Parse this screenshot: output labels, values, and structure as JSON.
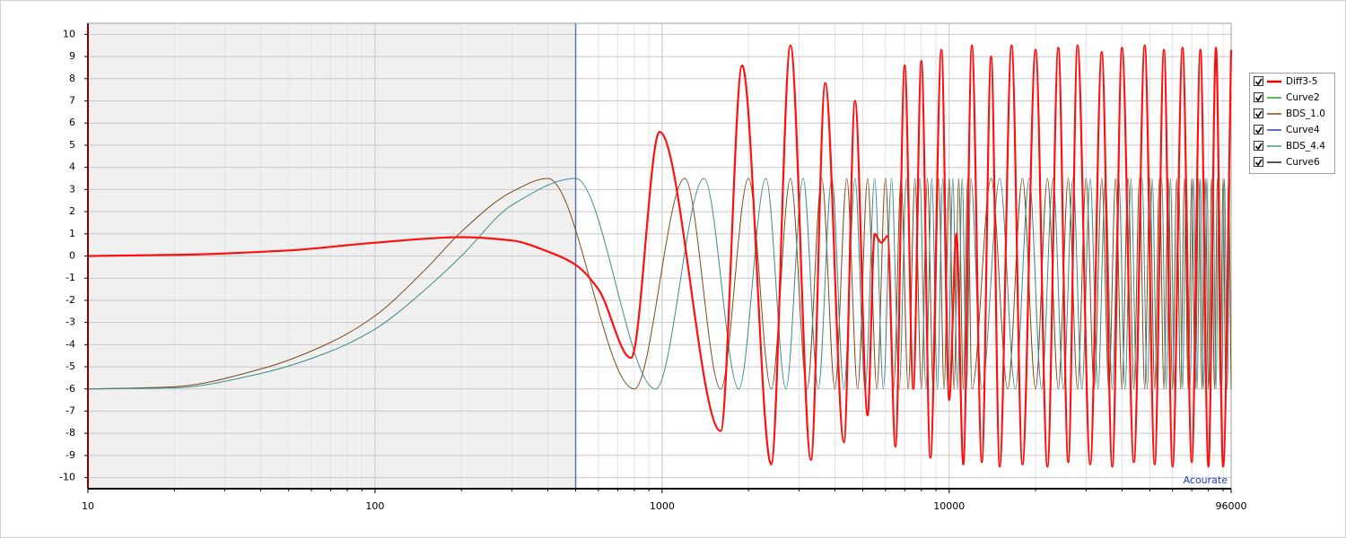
{
  "chart_data": {
    "type": "line",
    "annotation": "Acourate",
    "xscale": "log",
    "xlim": [
      10,
      96000
    ],
    "xticks": [
      10,
      100,
      1000,
      10000,
      96000
    ],
    "ylim": [
      -10.5,
      10.5
    ],
    "yticks": [
      -10,
      -9,
      -8,
      -7,
      -6,
      -5,
      -4,
      -3,
      -2,
      -1,
      0,
      1,
      2,
      3,
      4,
      5,
      6,
      7,
      8,
      9,
      10
    ],
    "grid": true,
    "cursor_x": 500,
    "legend_position": "right",
    "legend": [
      {
        "name": "Diff3-5",
        "color": "#e00000"
      },
      {
        "name": "Curve2",
        "color": "#5cb85c"
      },
      {
        "name": "BDS_1.0",
        "color": "#a0785a"
      },
      {
        "name": "Curve4",
        "color": "#6070c0"
      },
      {
        "name": "BDS_4.4",
        "color": "#7aaaa0"
      },
      {
        "name": "Curve6",
        "color": "#505a50"
      }
    ],
    "series": [
      {
        "name": "BDS_1.0",
        "color": "#7a4a1e",
        "width": 1,
        "x": [
          10,
          20,
          40,
          70,
          100,
          150,
          200,
          300,
          400,
          800,
          1200,
          1600,
          2000,
          2400,
          2800,
          3200,
          3600,
          4000,
          4400,
          4800,
          5200,
          5600,
          6000,
          6400,
          6800,
          7200,
          7600,
          8000,
          8400,
          8800,
          9200,
          9600,
          10000,
          10400,
          10800,
          11200,
          11600,
          12000,
          14000,
          16000,
          18000,
          20000,
          22000,
          24000,
          26000,
          28000,
          30000,
          32000,
          34000,
          36000,
          38000,
          40000,
          42000,
          44000,
          46000,
          48000,
          50000,
          52000,
          54000,
          56000,
          58000,
          60000,
          62000,
          64000,
          66000,
          68000,
          70000,
          72000,
          74000,
          76000,
          78000,
          80000,
          82000,
          84000,
          86000,
          88000,
          90000,
          92000,
          94000,
          96000
        ],
        "values": [
          -6,
          -5.9,
          -5.1,
          -3.9,
          -2.7,
          -0.6,
          1.1,
          2.9,
          3.5,
          -6,
          3.5,
          -6,
          3.5,
          -6,
          3.5,
          -6,
          3.5,
          -6,
          3.5,
          -6,
          3.5,
          -6,
          3.5,
          -6,
          3.5,
          -6,
          3.5,
          -6,
          3.5,
          -6,
          3.5,
          -6,
          3.5,
          -6,
          3.5,
          -6,
          3.5,
          -6,
          3.5,
          -6,
          3.5,
          -6,
          3.5,
          -6,
          3.5,
          -6,
          3.5,
          -6,
          3.5,
          -6,
          3.5,
          -6,
          3.5,
          -6,
          3.5,
          -6,
          3.5,
          -6,
          3.5,
          -6,
          3.5,
          -6,
          3.5,
          -6,
          3.5,
          -6,
          3.5,
          -6,
          3.5,
          -6,
          3.5,
          -6,
          3.5,
          -6,
          3.5,
          -6,
          3.5,
          -6,
          3.5,
          -6
        ]
      },
      {
        "name": "BDS_4.4",
        "color": "#3f8a86",
        "width": 1,
        "x": [
          10,
          20,
          40,
          70,
          100,
          150,
          200,
          300,
          500,
          950,
          1400,
          1850,
          2300,
          2700,
          3100,
          3500,
          3900,
          4300,
          4700,
          5100,
          5500,
          5900,
          6300,
          6700,
          7100,
          7500,
          7900,
          8300,
          8700,
          9100,
          9500,
          9900,
          10300,
          10700,
          11100,
          11500,
          11900,
          13000,
          15000,
          17000,
          19000,
          21000,
          23000,
          25000,
          27000,
          29000,
          31000,
          33000,
          35000,
          37000,
          39000,
          41000,
          43000,
          45000,
          47000,
          49000,
          51000,
          53000,
          55000,
          57000,
          59000,
          61000,
          63000,
          65000,
          67000,
          69000,
          71000,
          73000,
          75000,
          77000,
          79000,
          81000,
          83000,
          85000,
          87000,
          89000,
          91000,
          93000,
          95000
        ],
        "values": [
          -6,
          -5.95,
          -5.3,
          -4.3,
          -3.3,
          -1.5,
          0,
          2.3,
          3.5,
          -6,
          3.5,
          -6,
          3.5,
          -6,
          3.5,
          -6,
          3.5,
          -6,
          3.5,
          -6,
          3.5,
          -6,
          3.5,
          -6,
          3.5,
          -6,
          3.5,
          -6,
          3.5,
          -6,
          3.5,
          -6,
          3.5,
          -6,
          3.5,
          -6,
          3.5,
          -6,
          3.5,
          -6,
          3.5,
          -6,
          3.5,
          -6,
          3.5,
          -6,
          3.5,
          -6,
          3.5,
          -6,
          3.5,
          -6,
          3.5,
          -6,
          3.5,
          -6,
          3.5,
          -6,
          3.5,
          -6,
          3.5,
          -6,
          3.5,
          -6,
          3.5,
          -6,
          3.5,
          -6,
          3.5,
          -6,
          3.5,
          -6,
          3.5,
          -6,
          3.5,
          -6,
          3.5,
          -6,
          3.5
        ]
      },
      {
        "name": "Diff3-5",
        "color": "#ff1010",
        "width": 2.2,
        "x": [
          10,
          20,
          50,
          100,
          200,
          300,
          400,
          500,
          600,
          780,
          980,
          1600,
          1900,
          2400,
          2800,
          3300,
          3700,
          4300,
          4700,
          5200,
          5500,
          5800,
          6100,
          6500,
          7000,
          7500,
          8000,
          8600,
          9400,
          10000,
          10600,
          11200,
          12000,
          13000,
          14000,
          15000,
          16500,
          18000,
          20000,
          22000,
          24000,
          26000,
          28000,
          31000,
          34000,
          37000,
          40000,
          44000,
          48000,
          52000,
          56000,
          60000,
          65000,
          70000,
          75000,
          80000,
          85000,
          90000,
          96000
        ],
        "values": [
          0,
          0.05,
          0.25,
          0.6,
          0.85,
          0.7,
          0.2,
          -0.4,
          -1.5,
          -4.6,
          5.6,
          -7.9,
          8.6,
          -9.4,
          9.5,
          -9.2,
          7.8,
          -8.4,
          7,
          -7.2,
          1,
          0.6,
          0.9,
          -8.6,
          8.6,
          -6,
          8.8,
          -9.1,
          9.3,
          -6.5,
          1,
          -9.4,
          9.5,
          -9.3,
          9,
          -9.5,
          9.5,
          -9.4,
          9.3,
          -9.5,
          9.4,
          -9.3,
          9.5,
          -9.4,
          9.2,
          -9.5,
          9.4,
          -9.3,
          9.5,
          -9.4,
          9.3,
          -9.5,
          9.4,
          -9.3,
          9.3,
          -9.5,
          9.4,
          -9.5,
          9.3
        ]
      }
    ]
  }
}
